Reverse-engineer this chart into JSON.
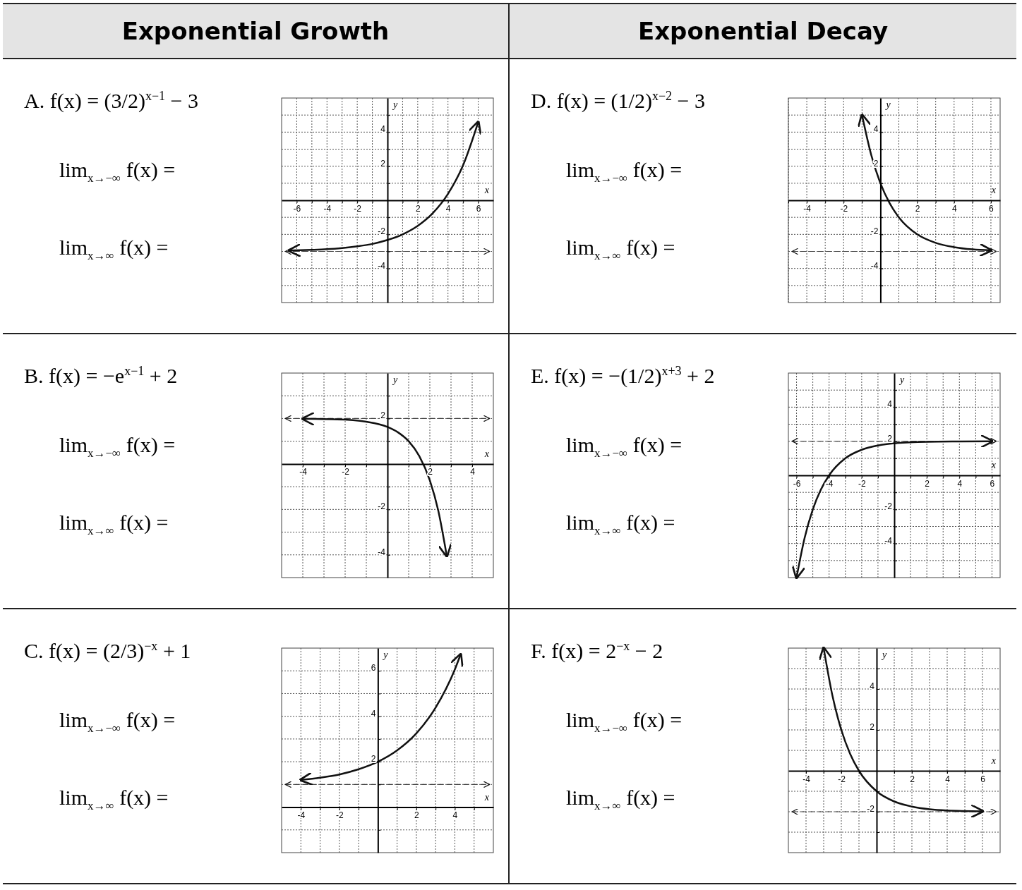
{
  "chart_data": [
    {
      "type": "other",
      "title": "Exponential Growth"
    },
    {
      "type": "other",
      "title": "Exponential Decay"
    },
    {
      "type": "line",
      "title": "A.  f(x) = (3/2)$^{x−1}$ − 3",
      "annotations": [
        "lim$_{x→−∞}$ f(x) =",
        "lim$_{x→∞}$ f(x) ="
      ],
      "xlabel": "x",
      "ylabel": "y",
      "grid": true,
      "xlim": [
        -7,
        7
      ],
      "ylim": [
        -6,
        6
      ],
      "xticks": [
        {
          "value": -6,
          "label": "-6"
        },
        {
          "value": -5,
          "label": null
        },
        {
          "value": -4,
          "label": "-4"
        },
        {
          "value": -3,
          "label": null
        },
        {
          "value": -2,
          "label": "-2"
        },
        {
          "value": -1,
          "label": null
        },
        {
          "value": 1,
          "label": null
        },
        2,
        {
          "value": 3,
          "label": null
        },
        4,
        {
          "value": 5,
          "label": null
        },
        6
      ],
      "yticks": [
        {
          "value": -5,
          "label": null
        },
        {
          "value": -4,
          "label": "-4"
        },
        {
          "value": -3,
          "label": null
        },
        {
          "value": -2,
          "label": "-2"
        },
        {
          "value": -1,
          "label": null
        },
        {
          "value": 1,
          "label": null
        },
        2,
        {
          "value": 3,
          "label": null
        },
        4,
        {
          "value": 5,
          "label": null
        }
      ],
      "ref_lines": [
        {
          "axis": "y",
          "value": -3,
          "line_style": "dashed"
        }
      ],
      "series": [
        {
          "color": "#111111",
          "x": [
            -6.5,
            -5,
            -4,
            -3,
            -2,
            -1,
            0,
            1,
            2,
            3,
            4,
            5,
            6
          ],
          "values": [
            -2.95,
            -2.91,
            -2.87,
            -2.8,
            -2.7,
            -2.56,
            -2.33,
            -2,
            -1.5,
            -0.75,
            0.38,
            2.06,
            4.59
          ]
        }
      ]
    },
    {
      "type": "line",
      "title": "D.  f(x) = (1/2)$^{x−2}$ − 3",
      "annotations": [
        "lim$_{x→−∞}$ f(x) =",
        "lim$_{x→∞}$ f(x) ="
      ],
      "xlabel": "x",
      "ylabel": "y",
      "grid": true,
      "xlim": [
        -5,
        6.5
      ],
      "ylim": [
        -6,
        6
      ],
      "xticks": [
        {
          "value": -5,
          "label": null
        },
        {
          "value": -4,
          "label": "-4"
        },
        {
          "value": -3,
          "label": null
        },
        {
          "value": -2,
          "label": "-2"
        },
        {
          "value": -1,
          "label": null
        },
        {
          "value": 1,
          "label": null
        },
        2,
        {
          "value": 3,
          "label": null
        },
        4,
        {
          "value": 5,
          "label": null
        },
        6
      ],
      "yticks": [
        {
          "value": -5,
          "label": null
        },
        {
          "value": -4,
          "label": "-4"
        },
        {
          "value": -3,
          "label": null
        },
        {
          "value": -2,
          "label": "-2"
        },
        {
          "value": -1,
          "label": null
        },
        {
          "value": 1,
          "label": null
        },
        2,
        {
          "value": 3,
          "label": null
        },
        4,
        {
          "value": 5,
          "label": null
        }
      ],
      "ref_lines": [
        {
          "axis": "y",
          "value": -3,
          "line_style": "dashed"
        }
      ],
      "series": [
        {
          "color": "#111111",
          "x": [
            -1,
            -0.5,
            0,
            0.5,
            1,
            2,
            3,
            4,
            5,
            6
          ],
          "values": [
            5,
            2.66,
            1,
            -0.17,
            -1,
            -2,
            -2.5,
            -2.75,
            -2.88,
            -2.94
          ]
        }
      ]
    },
    {
      "type": "line",
      "title": "B.  f(x) = −e$^{x−1}$ + 2",
      "annotations": [
        "lim$_{x→−∞}$ f(x) =",
        "lim$_{x→∞}$ f(x) ="
      ],
      "xlabel": "x",
      "ylabel": "y",
      "grid": true,
      "xlim": [
        -5,
        5
      ],
      "ylim": [
        -5,
        4
      ],
      "xticks": [
        {
          "value": -4,
          "label": "-4"
        },
        {
          "value": -3,
          "label": null
        },
        {
          "value": -2,
          "label": "-2"
        },
        {
          "value": -1,
          "label": null
        },
        {
          "value": 1,
          "label": null
        },
        2,
        {
          "value": 3,
          "label": null
        },
        4
      ],
      "yticks": [
        {
          "value": -4,
          "label": "-4"
        },
        {
          "value": -3,
          "label": null
        },
        {
          "value": -2,
          "label": "-2"
        },
        {
          "value": -1,
          "label": null
        },
        {
          "value": 1,
          "label": null
        },
        2,
        {
          "value": 3,
          "label": null
        }
      ],
      "ref_lines": [
        {
          "axis": "y",
          "value": 2,
          "line_style": "dashed"
        }
      ],
      "series": [
        {
          "color": "#111111",
          "x": [
            -4,
            -2,
            -1,
            0,
            0.5,
            1,
            1.5,
            2,
            2.4,
            2.8
          ],
          "values": [
            1.99,
            1.95,
            1.86,
            1.63,
            1.39,
            1,
            0.35,
            -0.72,
            -2.06,
            -4.05
          ]
        }
      ]
    },
    {
      "type": "line",
      "title": "E.  f(x) = −(1/2)$^{x+3}$ + 2",
      "annotations": [
        "lim$_{x→−∞}$ f(x) =",
        "lim$_{x→∞}$ f(x) ="
      ],
      "xlabel": "x",
      "ylabel": "y",
      "grid": true,
      "xlim": [
        -6.5,
        6.5
      ],
      "ylim": [
        -6,
        6
      ],
      "xticks": [
        {
          "value": -6,
          "label": "-6"
        },
        {
          "value": -5,
          "label": null
        },
        {
          "value": -4,
          "label": "-4"
        },
        {
          "value": -3,
          "label": null
        },
        {
          "value": -2,
          "label": "-2"
        },
        {
          "value": -1,
          "label": null
        },
        {
          "value": 1,
          "label": null
        },
        2,
        {
          "value": 3,
          "label": null
        },
        4,
        {
          "value": 5,
          "label": null
        },
        6
      ],
      "yticks": [
        {
          "value": -5,
          "label": null
        },
        {
          "value": -4,
          "label": "-4"
        },
        {
          "value": -3,
          "label": null
        },
        {
          "value": -2,
          "label": "-2"
        },
        {
          "value": -1,
          "label": null
        },
        {
          "value": 1,
          "label": null
        },
        2,
        {
          "value": 3,
          "label": null
        },
        4,
        {
          "value": 5,
          "label": null
        }
      ],
      "ref_lines": [
        {
          "axis": "y",
          "value": 2,
          "line_style": "dashed"
        }
      ],
      "series": [
        {
          "color": "#111111",
          "x": [
            -6,
            -5.5,
            -5,
            -4.5,
            -4,
            -3,
            -2,
            -1,
            0,
            2,
            4,
            6
          ],
          "values": [
            -6,
            -3.66,
            -2,
            -0.83,
            0,
            1,
            1.5,
            1.75,
            1.88,
            1.97,
            1.99,
            2
          ]
        }
      ]
    },
    {
      "type": "line",
      "title": "C.  f(x) = (2/3)$^{−x}$ + 1",
      "annotations": [
        "lim$_{x→−∞}$ f(x) =",
        "lim$_{x→∞}$ f(x) ="
      ],
      "xlabel": "x",
      "ylabel": "y",
      "grid": true,
      "xlim": [
        -5,
        6
      ],
      "ylim": [
        -2,
        7
      ],
      "xticks": [
        {
          "value": -4,
          "label": "-4"
        },
        {
          "value": -3,
          "label": null
        },
        {
          "value": -2,
          "label": "-2"
        },
        {
          "value": -1,
          "label": null
        },
        {
          "value": 1,
          "label": null
        },
        2,
        {
          "value": 3,
          "label": null
        },
        4,
        {
          "value": 5,
          "label": null
        }
      ],
      "yticks": [
        {
          "value": -1,
          "label": null
        },
        {
          "value": 1,
          "label": null
        },
        2,
        {
          "value": 3,
          "label": null
        },
        4,
        {
          "value": 5,
          "label": null
        },
        6
      ],
      "ref_lines": [
        {
          "axis": "y",
          "value": 1,
          "line_style": "dashed"
        }
      ],
      "series": [
        {
          "color": "#111111",
          "x": [
            -4,
            -3,
            -2,
            -1,
            0,
            1,
            2,
            3,
            4,
            4.3
          ],
          "values": [
            1.2,
            1.3,
            1.44,
            1.67,
            2,
            2.5,
            3.25,
            4.38,
            6.06,
            6.72
          ]
        }
      ]
    },
    {
      "type": "line",
      "title": "F.  f(x) = 2$^{−x}$ − 2",
      "annotations": [
        "lim$_{x→−∞}$ f(x) =",
        "lim$_{x→∞}$ f(x) ="
      ],
      "xlabel": "x",
      "ylabel": "y",
      "grid": true,
      "xlim": [
        -5,
        7
      ],
      "ylim": [
        -4,
        6
      ],
      "xticks": [
        {
          "value": -4,
          "label": "-4"
        },
        {
          "value": -3,
          "label": null
        },
        {
          "value": -2,
          "label": "-2"
        },
        {
          "value": -1,
          "label": null
        },
        {
          "value": 1,
          "label": null
        },
        2,
        {
          "value": 3,
          "label": null
        },
        4,
        {
          "value": 5,
          "label": null
        },
        6
      ],
      "yticks": [
        {
          "value": -3,
          "label": null
        },
        {
          "value": -2,
          "label": "-2"
        },
        {
          "value": -1,
          "label": null
        },
        {
          "value": 1,
          "label": null
        },
        2,
        {
          "value": 3,
          "label": null
        },
        4,
        {
          "value": 5,
          "label": null
        }
      ],
      "ref_lines": [
        {
          "axis": "y",
          "value": -2,
          "line_style": "dashed"
        }
      ],
      "series": [
        {
          "color": "#111111",
          "x": [
            -3,
            -2.5,
            -2,
            -1.5,
            -1,
            0,
            1,
            2,
            3,
            4,
            6
          ],
          "values": [
            6,
            3.66,
            2,
            0.83,
            0,
            -1,
            -1.5,
            -1.75,
            -1.88,
            -1.94,
            -1.98
          ]
        }
      ]
    }
  ]
}
